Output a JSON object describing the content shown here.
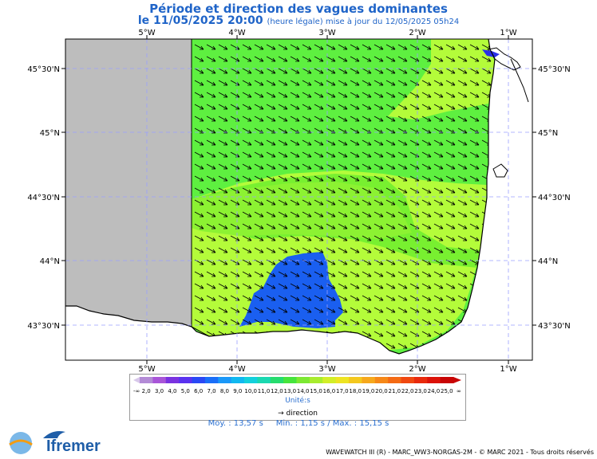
{
  "header": {
    "title": "Période et direction des vagues dominantes",
    "date": "le 11/05/2025 20:00",
    "update_note": "(heure légale) mise à jour du 12/05/2025 05h24"
  },
  "map": {
    "lon_labels": [
      "5°W",
      "4°W",
      "3°W",
      "2°W",
      "1°W"
    ],
    "lat_labels": [
      "45°30'N",
      "45°N",
      "44°30'N",
      "44°N",
      "43°30'N"
    ],
    "grid_style": "dashed",
    "land_color": "#ffffff",
    "no_data_color": "#bdbdbd",
    "field_colors": {
      "low": "#1a5ff0",
      "mid": "#5cf040",
      "high": "#b8ff3a",
      "edge": "#78f032"
    }
  },
  "legend": {
    "low_marker": "-∞",
    "high_marker": "∞",
    "values": [
      "2,0",
      "3,0",
      "4,0",
      "5,0",
      "6,0",
      "7,0",
      "8,0",
      "9,0",
      "10,0",
      "11,0",
      "12,0",
      "13,0",
      "14,0",
      "15,0",
      "16,0",
      "17,0",
      "18,0",
      "19,0",
      "20,0",
      "21,0",
      "22,0",
      "23,0",
      "24,0",
      "25,0"
    ],
    "colors": [
      "#b38bd6",
      "#a855d8",
      "#7a32e0",
      "#5a32f0",
      "#2a48f5",
      "#1a6ef8",
      "#1a98f8",
      "#10b8f0",
      "#12d0dc",
      "#1ad8b0",
      "#26dc6e",
      "#46e43c",
      "#7ce832",
      "#a8ec2e",
      "#d2ee28",
      "#eee422",
      "#f4c81e",
      "#f6a81c",
      "#f68818",
      "#f46a14",
      "#f04810",
      "#e82a0c",
      "#dc1208",
      "#c80404"
    ],
    "units_label": "Unité:s",
    "direction_label": "direction"
  },
  "stats": {
    "mean": "Moy. : 13,57 s",
    "min": "Min. : 1,15 s",
    "max": "Max. : 15,15 s"
  },
  "footer": {
    "credits": "WAVEWATCH III (R) - MARC_WW3-NORGAS-2M - © MARC 2021 - Tous droits réservés",
    "logo_lops": "LOPS",
    "logo_ifremer": "Ifremer"
  }
}
